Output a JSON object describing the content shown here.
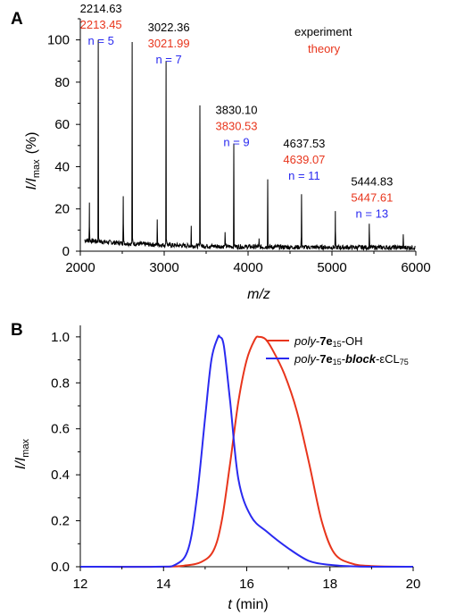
{
  "colors": {
    "black": "#000000",
    "red": "#e8351c",
    "blue": "#2a2af0"
  },
  "chart_data": [
    {
      "panel": "A",
      "type": "line",
      "xlabel": "m/z",
      "ylabel": {
        "italic": "I/I",
        "sub": "max",
        "unit": "(%)"
      },
      "xlim": [
        2000,
        6000
      ],
      "ylim": [
        0,
        110
      ],
      "xticks": [
        "2000",
        "3000",
        "4000",
        "5000",
        "6000"
      ],
      "yticks": [
        "0",
        "20",
        "40",
        "60",
        "80",
        "100"
      ],
      "legend": {
        "position": "top-right",
        "entries": [
          {
            "label": "experiment",
            "color": "#000000"
          },
          {
            "label": "theory",
            "color": "#e8351c"
          }
        ]
      },
      "peaks": [
        {
          "x": 2108,
          "y": 23
        },
        {
          "x": 2214,
          "y": 100
        },
        {
          "x": 2512,
          "y": 26
        },
        {
          "x": 2618,
          "y": 99
        },
        {
          "x": 2917,
          "y": 15
        },
        {
          "x": 3022,
          "y": 90
        },
        {
          "x": 3322,
          "y": 12
        },
        {
          "x": 3426,
          "y": 69
        },
        {
          "x": 3726,
          "y": 9
        },
        {
          "x": 3830,
          "y": 51
        },
        {
          "x": 4131,
          "y": 6
        },
        {
          "x": 4234,
          "y": 34
        },
        {
          "x": 4637,
          "y": 27
        },
        {
          "x": 5040,
          "y": 19
        },
        {
          "x": 5445,
          "y": 13
        },
        {
          "x": 5850,
          "y": 8
        }
      ],
      "annotations": [
        {
          "x": 2214.63,
          "y_label": 113,
          "experiment": "2214.63",
          "theory": "2213.45",
          "n": "n = 5"
        },
        {
          "x": 3022.36,
          "y_label": 104,
          "experiment": "3022.36",
          "theory": "3021.99",
          "n": "n = 7"
        },
        {
          "x": 3830.1,
          "y_label": 65,
          "experiment": "3830.10",
          "theory": "3830.53",
          "n": "n = 9"
        },
        {
          "x": 4637.53,
          "y_label": 49,
          "experiment": "4637.53",
          "theory": "4639.07",
          "n": "n = 11"
        },
        {
          "x": 5444.83,
          "y_label": 31,
          "experiment": "5444.83",
          "theory": "5447.61",
          "n": "n = 13"
        }
      ]
    },
    {
      "panel": "B",
      "type": "line",
      "xlabel": "t (min)",
      "ylabel": {
        "italic": "I/I",
        "sub": "max"
      },
      "xlim": [
        12,
        20
      ],
      "ylim": [
        0,
        1.05
      ],
      "xticks": [
        "12",
        "14",
        "16",
        "18",
        "20"
      ],
      "yticks": [
        "0.0",
        "0.2",
        "0.4",
        "0.6",
        "0.8",
        "1.0"
      ],
      "legend": {
        "position": "top-right"
      },
      "series": [
        {
          "name": "poly-7e15-OH",
          "legend_parts": [
            "poly",
            "-",
            "7e",
            "15",
            "-OH"
          ],
          "color": "#e8351c",
          "x": [
            12.0,
            14.0,
            14.5,
            14.9,
            15.2,
            15.4,
            15.6,
            15.8,
            16.0,
            16.2,
            16.3,
            16.45,
            16.6,
            16.9,
            17.2,
            17.5,
            17.8,
            18.1,
            18.5,
            19.0,
            20.0
          ],
          "y": [
            0.0,
            0.0,
            0.005,
            0.02,
            0.07,
            0.2,
            0.45,
            0.72,
            0.9,
            0.99,
            1.0,
            0.99,
            0.95,
            0.84,
            0.68,
            0.45,
            0.2,
            0.06,
            0.015,
            0.003,
            0.0
          ]
        },
        {
          "name": "poly-7e15-block-εCL75",
          "legend_parts": [
            "poly",
            "-",
            "7e",
            "15",
            "-",
            "block",
            "-εCL",
            "75"
          ],
          "color": "#2a2af0",
          "x": [
            12.0,
            13.8,
            14.3,
            14.6,
            14.8,
            15.0,
            15.15,
            15.3,
            15.35,
            15.45,
            15.6,
            15.8,
            16.1,
            16.5,
            17.0,
            17.5,
            18.0,
            18.5,
            19.0,
            20.0
          ],
          "y": [
            0.0,
            0.0,
            0.01,
            0.08,
            0.3,
            0.65,
            0.9,
            0.995,
            1.0,
            0.96,
            0.72,
            0.38,
            0.22,
            0.15,
            0.08,
            0.025,
            0.008,
            0.002,
            0.0,
            0.0
          ]
        }
      ]
    }
  ]
}
